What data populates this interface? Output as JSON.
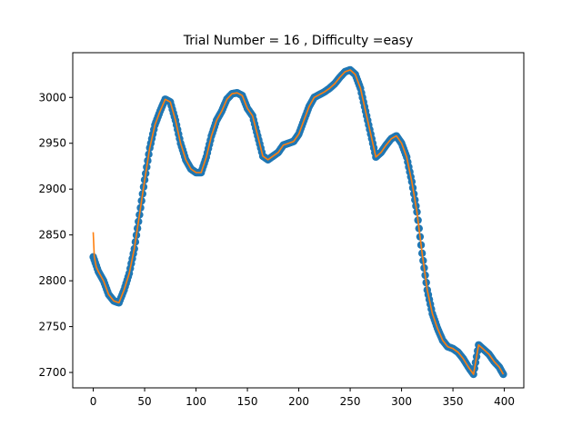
{
  "chart_data": {
    "type": "scatter",
    "title": "Trial Number = 16  , Difficulty =easy",
    "xlabel": "",
    "ylabel": "",
    "xlim": [
      -19.95,
      418.95
    ],
    "ylim": [
      2683.2,
      3048.8
    ],
    "xticks": [
      0,
      50,
      100,
      150,
      200,
      250,
      300,
      350,
      400
    ],
    "yticks": [
      2700,
      2750,
      2800,
      2850,
      2900,
      2950,
      3000
    ],
    "grid": false,
    "legend": "none",
    "series": [
      {
        "kind": "scatter",
        "color": "#1f77b4",
        "x": [
          0,
          5,
          10,
          15,
          20,
          25,
          30,
          35,
          40,
          45,
          50,
          55,
          60,
          65,
          70,
          75,
          80,
          85,
          90,
          95,
          100,
          105,
          110,
          115,
          120,
          125,
          130,
          135,
          140,
          145,
          150,
          155,
          160,
          165,
          170,
          175,
          180,
          185,
          190,
          195,
          200,
          205,
          210,
          215,
          220,
          225,
          230,
          235,
          240,
          245,
          250,
          255,
          260,
          265,
          270,
          275,
          280,
          285,
          290,
          295,
          300,
          305,
          310,
          315,
          320,
          325,
          330,
          335,
          340,
          345,
          350,
          355,
          360,
          365,
          370,
          375,
          380,
          385,
          390,
          395,
          399
        ],
        "y": [
          2826,
          2810,
          2800,
          2785,
          2778,
          2776,
          2790,
          2808,
          2835,
          2872,
          2910,
          2945,
          2970,
          2985,
          2998,
          2995,
          2975,
          2950,
          2932,
          2922,
          2918,
          2918,
          2935,
          2958,
          2975,
          2985,
          2998,
          3004,
          3005,
          3002,
          2988,
          2980,
          2958,
          2936,
          2932,
          2936,
          2940,
          2948,
          2950,
          2952,
          2960,
          2975,
          2990,
          3000,
          3003,
          3006,
          3010,
          3015,
          3022,
          3028,
          3030,
          3025,
          3010,
          2985,
          2960,
          2935,
          2940,
          2948,
          2955,
          2958,
          2950,
          2935,
          2908,
          2875,
          2830,
          2790,
          2764,
          2748,
          2735,
          2728,
          2726,
          2722,
          2715,
          2706,
          2698,
          2730,
          2725,
          2720,
          2712,
          2706,
          2698
        ]
      },
      {
        "kind": "line",
        "color": "#ff7f0e",
        "x": [
          0,
          1,
          3,
          5,
          10,
          15,
          20,
          25,
          30,
          35,
          40,
          45,
          50,
          55,
          60,
          65,
          70,
          75,
          80,
          85,
          90,
          95,
          100,
          105,
          110,
          115,
          120,
          125,
          130,
          135,
          140,
          145,
          150,
          155,
          160,
          165,
          170,
          175,
          180,
          185,
          190,
          195,
          200,
          205,
          210,
          215,
          220,
          225,
          230,
          235,
          240,
          245,
          250,
          255,
          260,
          265,
          270,
          275,
          280,
          285,
          290,
          295,
          300,
          305,
          310,
          315,
          320,
          325,
          330,
          335,
          340,
          345,
          350,
          355,
          360,
          365,
          370,
          375,
          380,
          385,
          390,
          395,
          399
        ],
        "y": [
          2853,
          2826,
          2815,
          2810,
          2800,
          2785,
          2778,
          2776,
          2790,
          2808,
          2835,
          2872,
          2910,
          2945,
          2970,
          2985,
          2998,
          2995,
          2975,
          2950,
          2932,
          2922,
          2918,
          2918,
          2935,
          2958,
          2975,
          2985,
          2998,
          3004,
          3005,
          3002,
          2988,
          2980,
          2958,
          2936,
          2932,
          2936,
          2940,
          2948,
          2950,
          2952,
          2960,
          2975,
          2990,
          3000,
          3003,
          3006,
          3010,
          3015,
          3022,
          3028,
          3030,
          3025,
          3010,
          2985,
          2960,
          2935,
          2940,
          2948,
          2955,
          2958,
          2950,
          2935,
          2908,
          2875,
          2830,
          2790,
          2764,
          2748,
          2735,
          2728,
          2726,
          2722,
          2715,
          2706,
          2698,
          2730,
          2725,
          2720,
          2712,
          2706,
          2698
        ]
      }
    ]
  }
}
